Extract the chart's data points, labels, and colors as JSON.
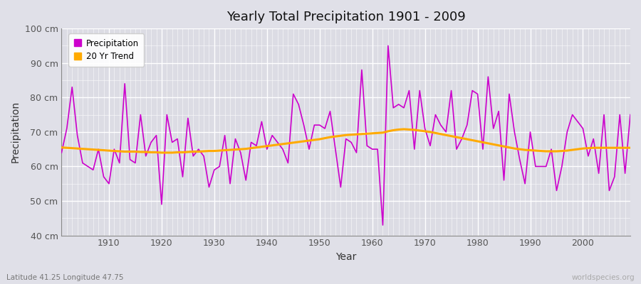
{
  "title": "Yearly Total Precipitation 1901 - 2009",
  "xlabel": "Year",
  "ylabel": "Precipitation",
  "subtitle": "Latitude 41.25 Longitude 47.75",
  "watermark": "worldspecies.org",
  "bg_color": "#e0e0e8",
  "plot_bg_color": "#dcdce4",
  "line_color": "#cc00cc",
  "trend_color": "#ffaa00",
  "ylim": [
    40,
    100
  ],
  "xlim": [
    1901,
    2009
  ],
  "yticks": [
    40,
    50,
    60,
    70,
    80,
    90,
    100
  ],
  "ytick_labels": [
    "40 cm",
    "50 cm",
    "60 cm",
    "70 cm",
    "80 cm",
    "90 cm",
    "100 cm"
  ],
  "years": [
    1901,
    1902,
    1903,
    1904,
    1905,
    1906,
    1907,
    1908,
    1909,
    1910,
    1911,
    1912,
    1913,
    1914,
    1915,
    1916,
    1917,
    1918,
    1919,
    1920,
    1921,
    1922,
    1923,
    1924,
    1925,
    1926,
    1927,
    1928,
    1929,
    1930,
    1931,
    1932,
    1933,
    1934,
    1935,
    1936,
    1937,
    1938,
    1939,
    1940,
    1941,
    1942,
    1943,
    1944,
    1945,
    1946,
    1947,
    1948,
    1949,
    1950,
    1951,
    1952,
    1953,
    1954,
    1955,
    1956,
    1957,
    1958,
    1959,
    1960,
    1961,
    1962,
    1963,
    1964,
    1965,
    1966,
    1967,
    1968,
    1969,
    1970,
    1971,
    1972,
    1973,
    1974,
    1975,
    1976,
    1977,
    1978,
    1979,
    1980,
    1981,
    1982,
    1983,
    1984,
    1985,
    1986,
    1987,
    1988,
    1989,
    1990,
    1991,
    1992,
    1993,
    1994,
    1995,
    1996,
    1997,
    1998,
    1999,
    2000,
    2001,
    2002,
    2003,
    2004,
    2005,
    2006,
    2007,
    2008,
    2009
  ],
  "precipitation": [
    64,
    71,
    83,
    69,
    61,
    60,
    59,
    65,
    57,
    55,
    65,
    61,
    84,
    62,
    61,
    75,
    63,
    67,
    69,
    49,
    75,
    67,
    68,
    57,
    74,
    63,
    65,
    63,
    54,
    59,
    60,
    69,
    55,
    68,
    64,
    56,
    67,
    66,
    73,
    65,
    69,
    67,
    65,
    61,
    81,
    78,
    72,
    65,
    72,
    72,
    71,
    76,
    65,
    54,
    68,
    67,
    64,
    88,
    66,
    65,
    65,
    43,
    95,
    77,
    78,
    77,
    82,
    65,
    82,
    71,
    66,
    75,
    72,
    70,
    82,
    65,
    68,
    72,
    82,
    81,
    65,
    86,
    71,
    76,
    56,
    81,
    70,
    62,
    55,
    70,
    60,
    60,
    60,
    65,
    53,
    60,
    70,
    75,
    73,
    71,
    63,
    68,
    58,
    75,
    53,
    57,
    75,
    58,
    75
  ],
  "trend": [
    65.5,
    65.4,
    65.3,
    65.2,
    65.1,
    65.0,
    64.9,
    64.8,
    64.7,
    64.6,
    64.5,
    64.4,
    64.3,
    64.3,
    64.3,
    64.2,
    64.2,
    64.1,
    64.1,
    64.0,
    64.0,
    64.0,
    64.1,
    64.1,
    64.2,
    64.3,
    64.3,
    64.4,
    64.5,
    64.5,
    64.6,
    64.7,
    64.8,
    64.9,
    65.0,
    65.1,
    65.3,
    65.5,
    65.7,
    65.9,
    66.1,
    66.3,
    66.5,
    66.7,
    66.9,
    67.1,
    67.3,
    67.5,
    67.7,
    67.9,
    68.2,
    68.5,
    68.7,
    68.9,
    69.1,
    69.2,
    69.3,
    69.4,
    69.5,
    69.6,
    69.7,
    69.8,
    70.2,
    70.5,
    70.7,
    70.8,
    70.7,
    70.6,
    70.4,
    70.2,
    70.0,
    69.7,
    69.4,
    69.1,
    68.8,
    68.5,
    68.2,
    67.9,
    67.6,
    67.3,
    67.0,
    66.7,
    66.4,
    66.1,
    65.8,
    65.5,
    65.2,
    65.0,
    64.8,
    64.7,
    64.6,
    64.5,
    64.4,
    64.4,
    64.4,
    64.5,
    64.6,
    64.8,
    65.0,
    65.2,
    65.3,
    65.4,
    65.4,
    65.4,
    65.4,
    65.4,
    65.4,
    65.4,
    65.4
  ]
}
